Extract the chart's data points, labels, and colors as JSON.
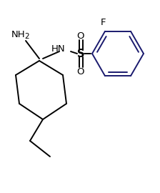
{
  "bg_color": "#ffffff",
  "line_color": "#000000",
  "ring_color": "#1a1a6e",
  "label_color": "#000000",
  "lw": 1.4,
  "figsize": [
    2.24,
    2.7
  ],
  "dpi": 100,
  "xlim": [
    0,
    224
  ],
  "ylim": [
    0,
    270
  ]
}
